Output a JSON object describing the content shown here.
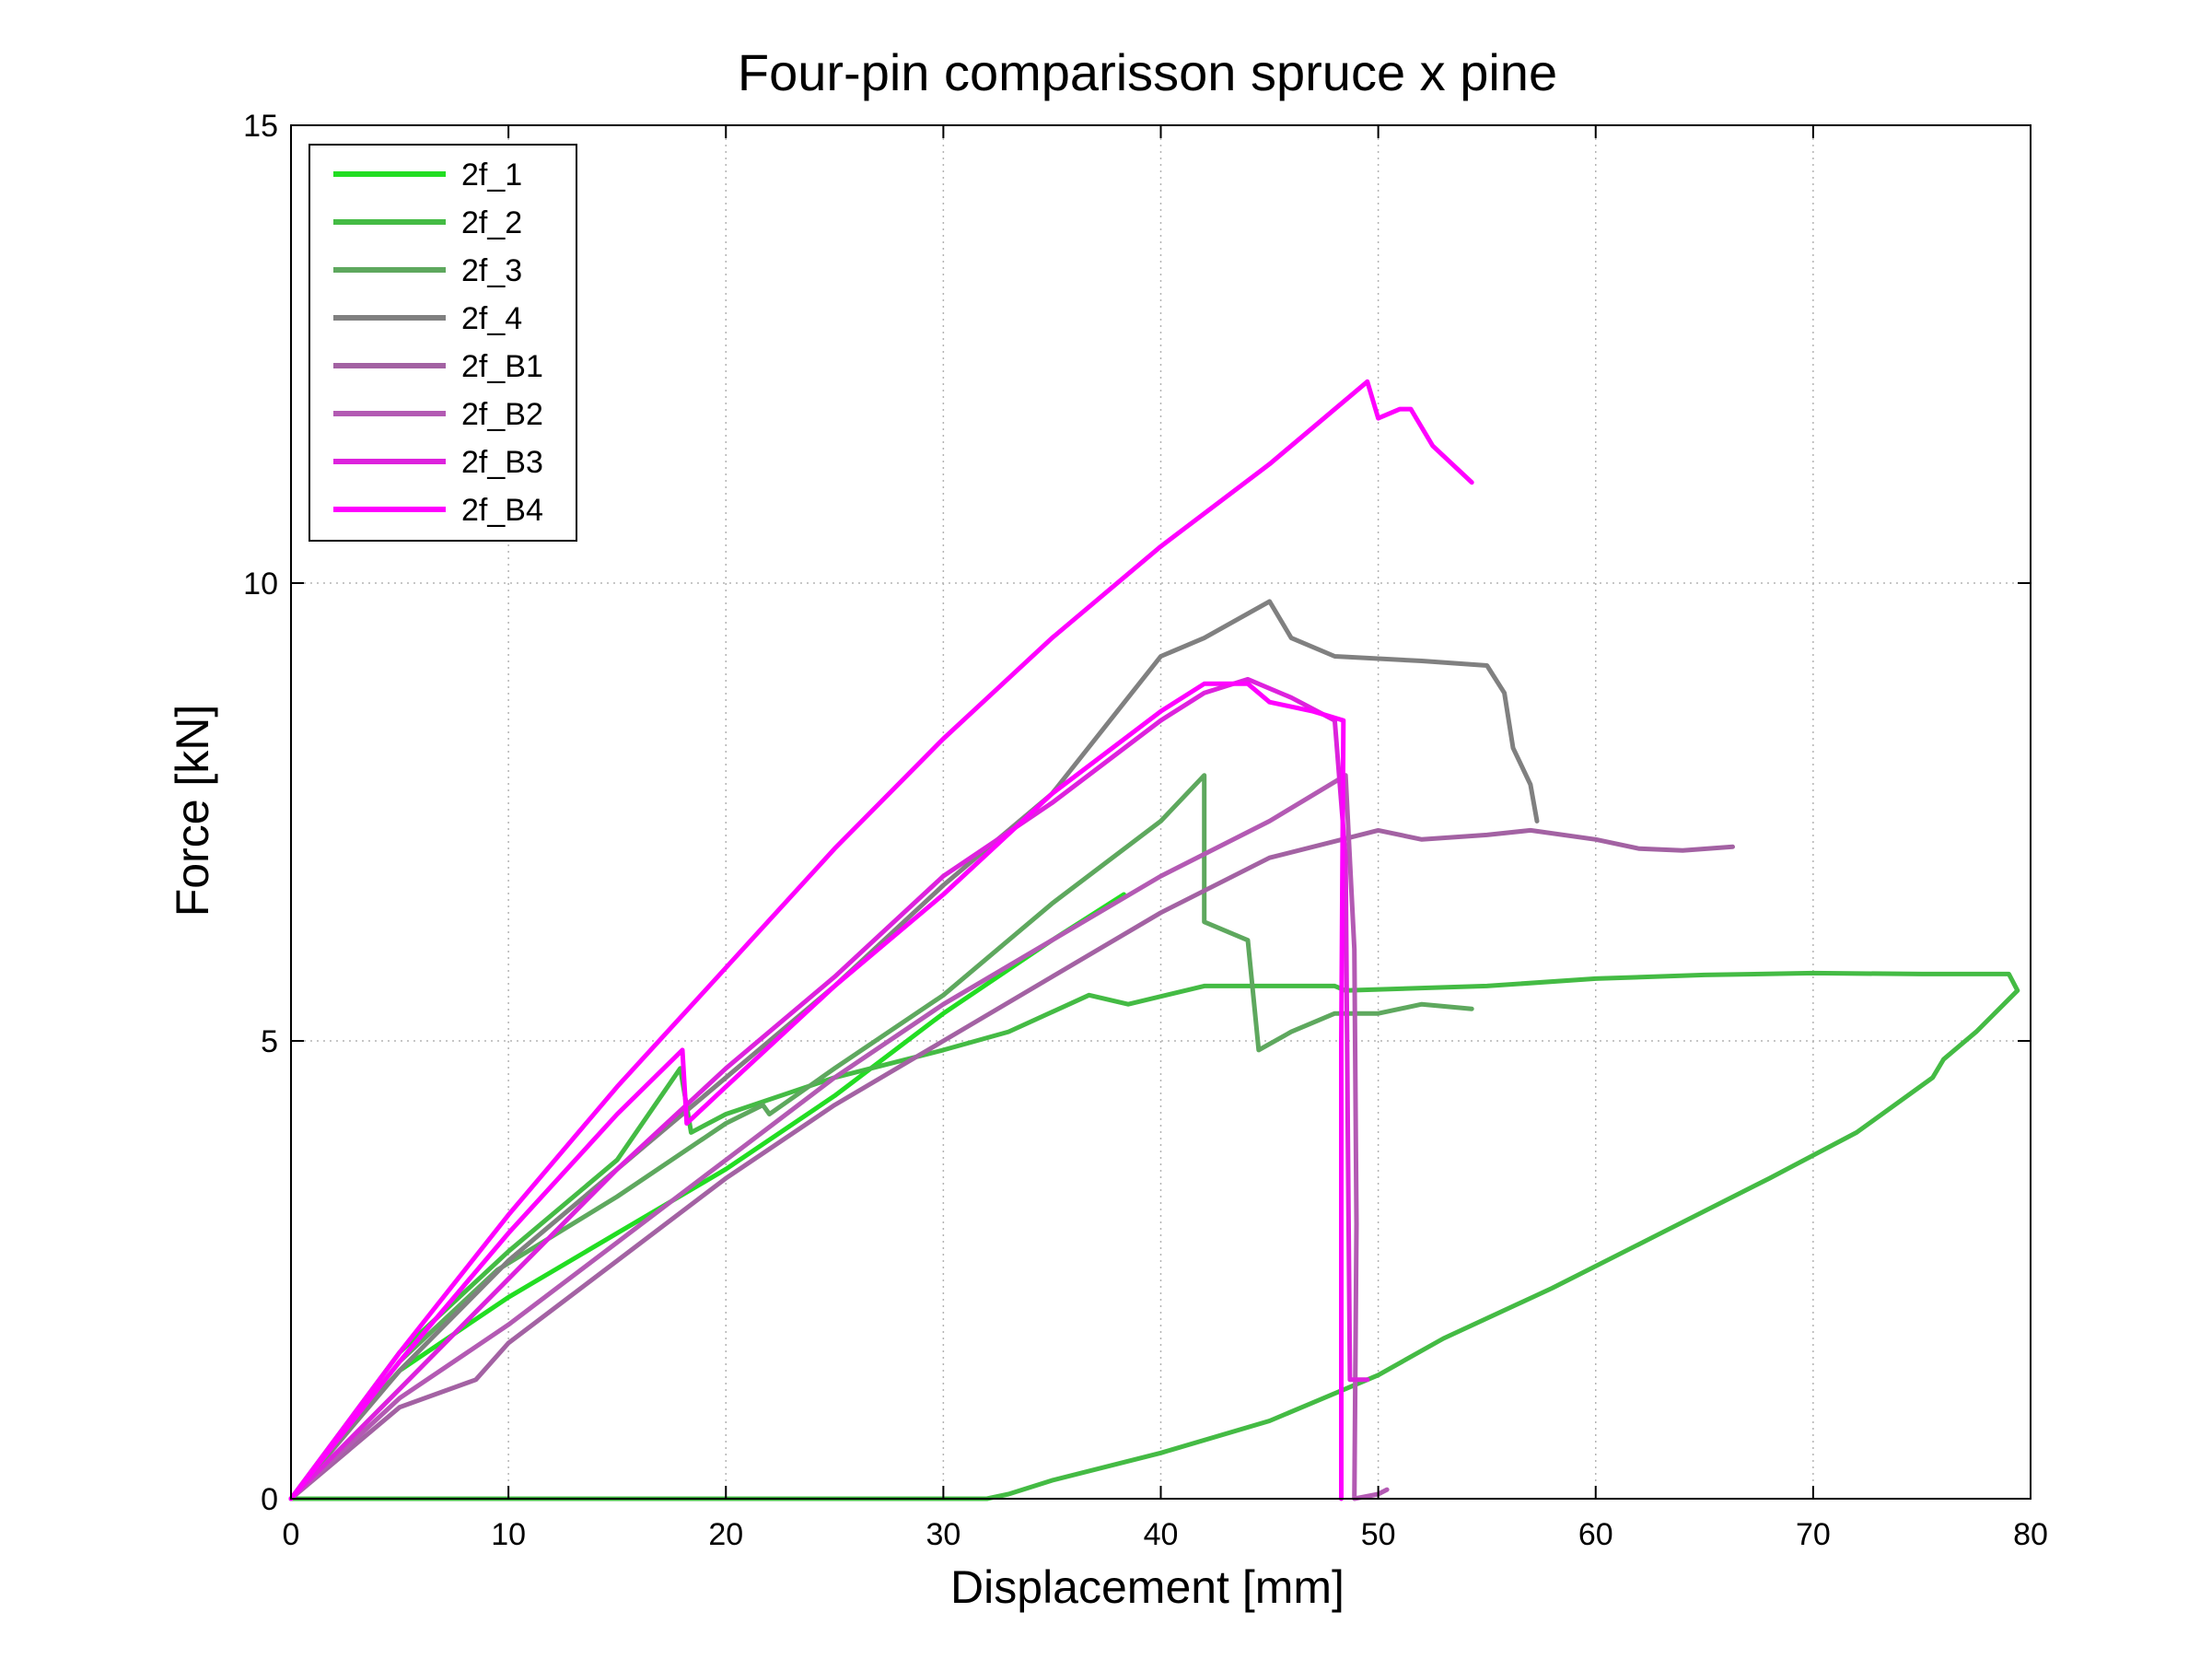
{
  "chart_data": {
    "type": "line",
    "title": "Four-pin comparisson spruce x pine",
    "xlabel": "Displacement [mm]",
    "ylabel": "Force [kN]",
    "xlim": [
      0,
      80
    ],
    "ylim": [
      0,
      15
    ],
    "xticks": [
      0,
      10,
      20,
      30,
      40,
      50,
      60,
      70,
      80
    ],
    "yticks": [
      0,
      5,
      10,
      15
    ],
    "grid": true,
    "legend": "top-left",
    "series": [
      {
        "name": "2f_1",
        "color": "#22dd22",
        "points": [
          [
            0,
            0
          ],
          [
            2,
            0.6
          ],
          [
            5,
            1.4
          ],
          [
            10,
            2.2
          ],
          [
            15,
            2.9
          ],
          [
            20,
            3.6
          ],
          [
            25,
            4.4
          ],
          [
            30,
            5.3
          ],
          [
            35,
            6.1
          ],
          [
            38.3,
            6.6
          ]
        ]
      },
      {
        "name": "2f_2",
        "color": "#44bb44",
        "points": [
          [
            0,
            0
          ],
          [
            5,
            1.6
          ],
          [
            10,
            2.7
          ],
          [
            15,
            3.7
          ],
          [
            17.9,
            4.7
          ],
          [
            18.4,
            4.0
          ],
          [
            20,
            4.2
          ],
          [
            25,
            4.6
          ],
          [
            30,
            4.9
          ],
          [
            33,
            5.1
          ],
          [
            36.7,
            5.5
          ],
          [
            38.5,
            5.4
          ],
          [
            42,
            5.6
          ],
          [
            48,
            5.6
          ],
          [
            48.5,
            5.55
          ],
          [
            55,
            5.6
          ],
          [
            60,
            5.68
          ],
          [
            65,
            5.72
          ],
          [
            70,
            5.74
          ],
          [
            75,
            5.73
          ],
          [
            79,
            5.73
          ],
          [
            79.4,
            5.55
          ],
          [
            77.5,
            5.1
          ],
          [
            76,
            4.8
          ],
          [
            75.5,
            4.6
          ],
          [
            72,
            4.0
          ],
          [
            68,
            3.5
          ],
          [
            63,
            2.9
          ],
          [
            58,
            2.3
          ],
          [
            53,
            1.75
          ],
          [
            50,
            1.35
          ],
          [
            45,
            0.85
          ],
          [
            40,
            0.5
          ],
          [
            35,
            0.2
          ],
          [
            33,
            0.05
          ],
          [
            32,
            0.0
          ],
          [
            20,
            0.0
          ],
          [
            10,
            0.0
          ],
          [
            0,
            0.0
          ]
        ]
      },
      {
        "name": "2f_3",
        "color": "#5ea85e",
        "points": [
          [
            0,
            0
          ],
          [
            5,
            1.5
          ],
          [
            9.5,
            2.5
          ],
          [
            15,
            3.3
          ],
          [
            20,
            4.1
          ],
          [
            21.7,
            4.3
          ],
          [
            22,
            4.2
          ],
          [
            25,
            4.7
          ],
          [
            30,
            5.5
          ],
          [
            35,
            6.5
          ],
          [
            40,
            7.4
          ],
          [
            42,
            7.9
          ],
          [
            42,
            6.3
          ],
          [
            44,
            6.1
          ],
          [
            44.5,
            4.9
          ],
          [
            46,
            5.1
          ],
          [
            48,
            5.3
          ],
          [
            50,
            5.3
          ],
          [
            52,
            5.4
          ],
          [
            54.3,
            5.35
          ]
        ]
      },
      {
        "name": "2f_4",
        "color": "#808080",
        "points": [
          [
            0,
            0
          ],
          [
            5,
            1.4
          ],
          [
            10,
            2.6
          ],
          [
            15,
            3.6
          ],
          [
            20,
            4.6
          ],
          [
            25,
            5.6
          ],
          [
            30,
            6.7
          ],
          [
            35,
            7.7
          ],
          [
            40,
            9.2
          ],
          [
            41,
            9.3
          ],
          [
            42,
            9.4
          ],
          [
            45,
            9.8
          ],
          [
            46,
            9.4
          ],
          [
            48,
            9.2
          ],
          [
            52,
            9.15
          ],
          [
            55,
            9.1
          ],
          [
            55.8,
            8.8
          ],
          [
            56.2,
            8.2
          ],
          [
            57,
            7.8
          ],
          [
            57.3,
            7.4
          ]
        ]
      },
      {
        "name": "2f_B1",
        "color": "#a362a3",
        "points": [
          [
            0,
            0
          ],
          [
            5,
            1.0
          ],
          [
            8.5,
            1.3
          ],
          [
            10,
            1.7
          ],
          [
            15,
            2.6
          ],
          [
            20,
            3.5
          ],
          [
            25,
            4.3
          ],
          [
            30,
            5.0
          ],
          [
            35,
            5.7
          ],
          [
            40,
            6.4
          ],
          [
            45,
            7.0
          ],
          [
            50,
            7.3
          ],
          [
            52,
            7.2
          ],
          [
            55,
            7.25
          ],
          [
            57,
            7.3
          ],
          [
            60,
            7.2
          ],
          [
            62,
            7.1
          ],
          [
            64,
            7.08
          ],
          [
            66.3,
            7.12
          ]
        ]
      },
      {
        "name": "2f_B2",
        "color": "#b35ab3",
        "points": [
          [
            0,
            0
          ],
          [
            5,
            1.1
          ],
          [
            10,
            1.9
          ],
          [
            15,
            2.8
          ],
          [
            20,
            3.7
          ],
          [
            25,
            4.6
          ],
          [
            30,
            5.4
          ],
          [
            35,
            6.1
          ],
          [
            40,
            6.8
          ],
          [
            45,
            7.4
          ],
          [
            48.5,
            7.9
          ],
          [
            48.9,
            6.0
          ],
          [
            49,
            3.0
          ],
          [
            48.9,
            0.0
          ],
          [
            50,
            0.05
          ],
          [
            50.4,
            0.1
          ]
        ]
      },
      {
        "name": "2f_B3",
        "color": "#dd22dd",
        "points": [
          [
            0,
            0
          ],
          [
            5,
            1.2
          ],
          [
            10,
            2.4
          ],
          [
            15,
            3.6
          ],
          [
            20,
            4.7
          ],
          [
            25,
            5.7
          ],
          [
            30,
            6.8
          ],
          [
            35,
            7.6
          ],
          [
            40,
            8.5
          ],
          [
            42,
            8.8
          ],
          [
            44,
            8.95
          ],
          [
            46,
            8.75
          ],
          [
            48,
            8.5
          ],
          [
            48.5,
            7.0
          ],
          [
            48.6,
            4.0
          ],
          [
            48.7,
            1.3
          ],
          [
            49.5,
            1.3
          ]
        ]
      },
      {
        "name": "2f_B4",
        "color": "#ff00ff",
        "points": [
          [
            0,
            0
          ],
          [
            5,
            1.5
          ],
          [
            10,
            2.9
          ],
          [
            15,
            4.2
          ],
          [
            18,
            4.9
          ],
          [
            18.2,
            4.1
          ],
          [
            20,
            4.5
          ],
          [
            25,
            5.6
          ],
          [
            30,
            6.6
          ],
          [
            35,
            7.7
          ],
          [
            40,
            8.6
          ],
          [
            42,
            8.9
          ],
          [
            44,
            8.9
          ],
          [
            45,
            8.7
          ],
          [
            47,
            8.6
          ],
          [
            48.4,
            8.5
          ],
          [
            48.3,
            5.0
          ],
          [
            48.3,
            0.0
          ]
        ]
      },
      {
        "name": "",
        "color": "#ff00ff",
        "points": [
          [
            0,
            0
          ],
          [
            5,
            1.6
          ],
          [
            10,
            3.1
          ],
          [
            15,
            4.5
          ],
          [
            20,
            5.8
          ],
          [
            25,
            7.1
          ],
          [
            30,
            8.3
          ],
          [
            35,
            9.4
          ],
          [
            40,
            10.4
          ],
          [
            45,
            11.3
          ],
          [
            49.5,
            12.2
          ],
          [
            50,
            11.8
          ],
          [
            51,
            11.9
          ],
          [
            51.5,
            11.9
          ],
          [
            52.5,
            11.5
          ],
          [
            54.3,
            11.1
          ]
        ]
      }
    ]
  }
}
